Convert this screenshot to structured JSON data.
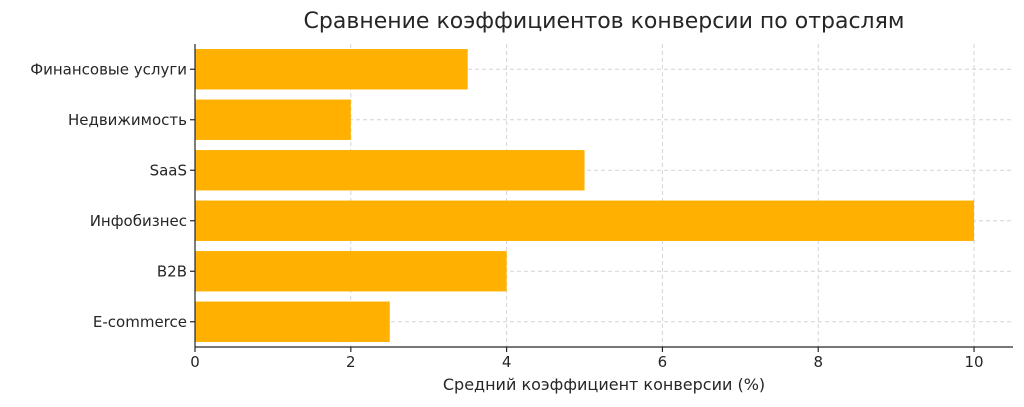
{
  "chart_data": {
    "type": "bar",
    "orientation": "horizontal",
    "title": "Сравнение коэффициентов конверсии по отраслям",
    "xlabel": "Средний коэффициент конверсии (%)",
    "ylabel": "",
    "categories": [
      "E-commerce",
      "B2B",
      "Инфобизнес",
      "SaaS",
      "Недвижимость",
      "Финансовые услуги"
    ],
    "values": [
      2.5,
      4,
      10,
      5,
      2,
      3.5
    ],
    "xlim": [
      0,
      10.5
    ],
    "x_ticks": [
      0,
      2,
      4,
      6,
      8,
      10
    ],
    "grid": true,
    "bar_color": "#FFB000"
  }
}
